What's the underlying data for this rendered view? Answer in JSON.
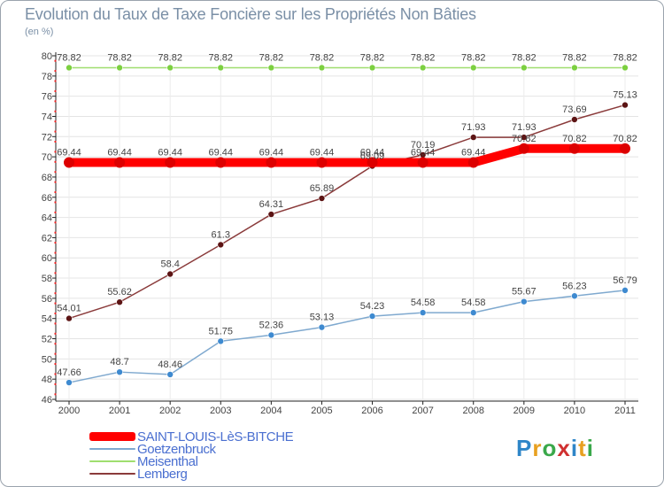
{
  "title": "Evolution du Taux de Taxe Foncière sur les Propriétés Non Bâties",
  "subtitle": "(en %)",
  "logo": "Proxiti",
  "chart_data": {
    "type": "line",
    "title": "Evolution du Taux de Taxe Foncière sur les Propriétés Non Bâties",
    "ylabel": "(en %)",
    "xlabel": "",
    "x": [
      "2000",
      "2001",
      "2002",
      "2003",
      "2004",
      "2005",
      "2006",
      "2007",
      "2008",
      "2009",
      "2010",
      "2011"
    ],
    "ylim": [
      46,
      80
    ],
    "yticks": [
      46,
      48,
      50,
      52,
      54,
      56,
      58,
      60,
      62,
      64,
      66,
      68,
      70,
      72,
      74,
      76,
      78,
      80
    ],
    "grid": true,
    "legend_position": "bottom-left",
    "series": [
      {
        "name": "SAINT-LOUIS-LèS-BITCHE",
        "color": "#ff0000",
        "marker": "#dd0000",
        "values": [
          69.44,
          69.44,
          69.44,
          69.44,
          69.44,
          69.44,
          69.44,
          69.44,
          69.44,
          70.82,
          70.82,
          70.82
        ],
        "labels": [
          "69.44",
          "69.44",
          "69.44",
          "69.44",
          "69.44",
          "69.44",
          "69.44",
          "69.44",
          "69.44",
          "70.82",
          "70.82",
          "70.82"
        ]
      },
      {
        "name": "Goetzenbruck",
        "color": "#7fa9cf",
        "marker": "#3e8ad0",
        "values": [
          47.66,
          48.7,
          48.46,
          51.75,
          52.36,
          53.13,
          54.23,
          54.58,
          54.58,
          55.67,
          56.23,
          56.79
        ],
        "labels": [
          "47.66",
          "48.7",
          "48.46",
          "51.75",
          "52.36",
          "53.13",
          "54.23",
          "54.58",
          "54.58",
          "55.67",
          "56.23",
          "56.79"
        ]
      },
      {
        "name": "Meisenthal",
        "color": "#9fde6f",
        "marker": "#7cd040",
        "values": [
          78.82,
          78.82,
          78.82,
          78.82,
          78.82,
          78.82,
          78.82,
          78.82,
          78.82,
          78.82,
          78.82,
          78.82
        ],
        "labels": [
          "78.82",
          "78.82",
          "78.82",
          "78.82",
          "78.82",
          "78.82",
          "78.82",
          "78.82",
          "78.82",
          "78.82",
          "78.82",
          "78.82"
        ]
      },
      {
        "name": "Lemberg",
        "color": "#8a3a3a",
        "marker": "#5c1414",
        "values": [
          54.01,
          55.62,
          58.4,
          61.3,
          64.31,
          65.89,
          69.09,
          70.19,
          71.93,
          71.93,
          73.69,
          75.13
        ],
        "labels": [
          "54.01",
          "55.62",
          "58.4",
          "61.3",
          "64.31",
          "65.89",
          "69.09",
          "70.19",
          "71.93",
          "71.93",
          "73.69",
          "75.13"
        ]
      }
    ]
  }
}
